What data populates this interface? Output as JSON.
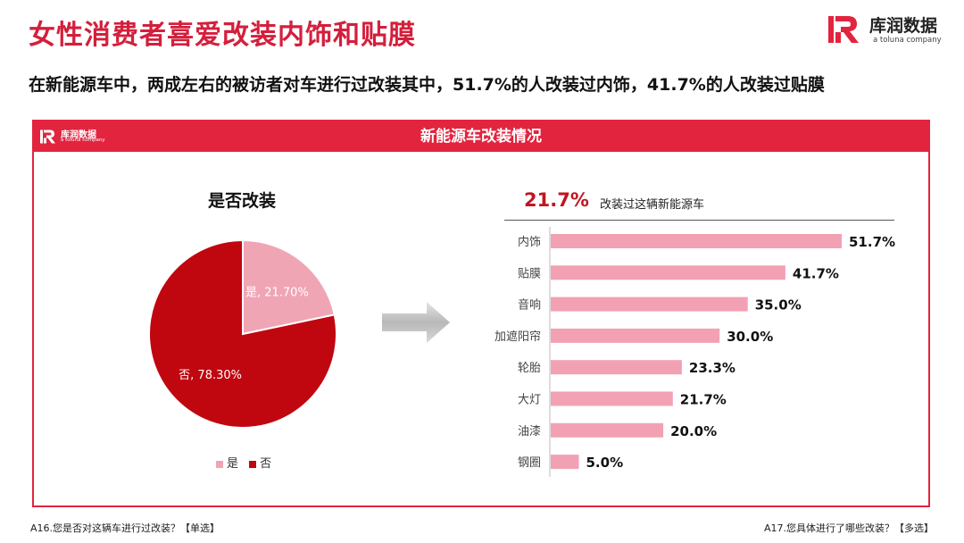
{
  "header": {
    "title": "女性消费者喜爱改装内饰和贴膜",
    "subtitle": "在新能源车中，两成左右的被访者对车进行过改装其中，51.7%的人改装过内饰，41.7%的人改装过贴膜"
  },
  "brand": {
    "name": "库润数据",
    "sub": "a toluna company",
    "color": "#e2243f"
  },
  "panel": {
    "title": "新能源车改装情况",
    "logo_name": "库润数据",
    "logo_sub": "a toluna company"
  },
  "colors": {
    "accent": "#e2243f",
    "title_red": "#d41f3c",
    "pie_no": "#c0060f",
    "pie_yes": "#f0a5b5",
    "bar": "#f2a1b4"
  },
  "chart_data": [
    {
      "type": "pie",
      "title": "是否改装",
      "slices": [
        {
          "name": "是",
          "value": 21.7,
          "label": "是, 21.70%",
          "color": "#f0a5b5"
        },
        {
          "name": "否",
          "value": 78.3,
          "label": "否, 78.30%",
          "color": "#c0060f"
        }
      ],
      "legend": [
        "是",
        "否"
      ]
    },
    {
      "type": "bar",
      "orientation": "horizontal",
      "headline_value": "21.7%",
      "headline_text": "改装过这辆新能源车",
      "categories": [
        "内饰",
        "贴膜",
        "音响",
        "加遮阳帘",
        "轮胎",
        "大灯",
        "油漆",
        "钢圈"
      ],
      "values": [
        51.7,
        41.7,
        35.0,
        30.0,
        23.3,
        21.7,
        20.0,
        5.0
      ],
      "labels": [
        "51.7%",
        "41.7%",
        "35.0%",
        "30.0%",
        "23.3%",
        "21.7%",
        "20.0%",
        "5.0%"
      ],
      "xlim": [
        0,
        51.7
      ]
    }
  ],
  "footer": {
    "left": "A16.您是否对这辆车进行过改装？【单选】",
    "right": "A17.您具体进行了哪些改装？【多选】"
  }
}
